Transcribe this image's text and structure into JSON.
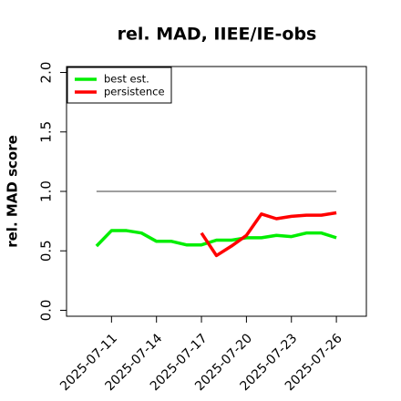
{
  "chart_data": {
    "type": "line",
    "title": "rel. MAD, IIEE/IE-obs",
    "y_label": "rel. MAD score",
    "x": [
      "2025-07-10",
      "2025-07-11",
      "2025-07-12",
      "2025-07-13",
      "2025-07-14",
      "2025-07-15",
      "2025-07-16",
      "2025-07-17",
      "2025-07-18",
      "2025-07-19",
      "2025-07-20",
      "2025-07-21",
      "2025-07-22",
      "2025-07-23",
      "2025-07-24",
      "2025-07-25",
      "2025-07-26"
    ],
    "series": [
      {
        "name": "best est.",
        "color": "#00ee00",
        "values": [
          0.54,
          0.67,
          0.67,
          0.65,
          0.58,
          0.58,
          0.55,
          0.55,
          0.59,
          0.59,
          0.61,
          0.61,
          0.63,
          0.62,
          0.65,
          0.65,
          0.61
        ]
      },
      {
        "name": "persistence",
        "color": "#ff0000",
        "values": [
          null,
          null,
          null,
          null,
          null,
          null,
          null,
          0.65,
          0.46,
          0.54,
          0.63,
          0.81,
          0.77,
          0.79,
          0.8,
          0.8,
          0.82
        ]
      }
    ],
    "reference_line": {
      "value": 1,
      "color": "#666666"
    },
    "xlim": [
      "2025-07-08",
      "2025-07-28"
    ],
    "xticks": [
      "2025-07-11",
      "2025-07-14",
      "2025-07-17",
      "2025-07-20",
      "2025-07-23",
      "2025-07-26"
    ],
    "ylim": [
      -0.05,
      2.05
    ],
    "yticks": [
      {
        "value": 0,
        "label": "0.0"
      },
      {
        "value": 0.5,
        "label": "0.5"
      },
      {
        "value": 1,
        "label": "1.0"
      },
      {
        "value": 1.5,
        "label": "1.5"
      },
      {
        "value": 2,
        "label": "2.0"
      }
    ],
    "legend": "top-left"
  }
}
